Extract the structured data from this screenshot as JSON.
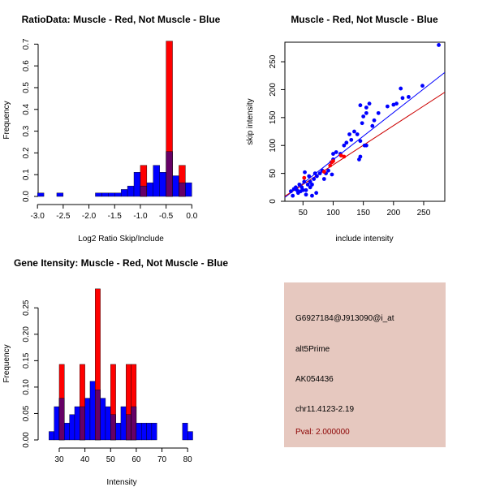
{
  "colors": {
    "muscle": "#ff0000",
    "not_muscle": "#0000ff",
    "overlap": "#660066",
    "panel_bg": "#e6c8bf",
    "pval": "#8b0000"
  },
  "chart_data": [
    {
      "type": "histogram",
      "title": "RatioData: Muscle - Red, Not Muscle - Blue",
      "xlabel": "Log2 Ratio Skip/Include",
      "ylabel": "Frequency",
      "xlim": [
        -3.05,
        0.2
      ],
      "ylim": [
        0,
        0.72
      ],
      "x_ticks": [
        "-3.0",
        "-2.5",
        "-2.0",
        "-1.5",
        "-1.0",
        "-0.5",
        "0.0"
      ],
      "x_tick_values": [
        -3.0,
        -2.5,
        -2.0,
        -1.5,
        -1.0,
        -0.5,
        0.0
      ],
      "y_ticks": [
        "0.0",
        "0.1",
        "0.2",
        "0.3",
        "0.4",
        "0.5",
        "0.6",
        "0.7"
      ],
      "y_tick_values": [
        0,
        0.1,
        0.2,
        0.3,
        0.4,
        0.5,
        0.6,
        0.7
      ],
      "bins": [
        -3.0,
        -2.875,
        -2.75,
        -2.625,
        -2.5,
        -2.375,
        -2.25,
        -2.125,
        -2.0,
        -1.875,
        -1.75,
        -1.625,
        -1.5,
        -1.375,
        -1.25,
        -1.125,
        -1.0,
        -0.875,
        -0.75,
        -0.625,
        -0.5,
        -0.375,
        -0.25,
        -0.125,
        0.0,
        0.125
      ],
      "series": [
        {
          "name": "Muscle",
          "color": "#ff0000",
          "values": [
            0,
            0,
            0,
            0,
            0,
            0,
            0,
            0,
            0,
            0,
            0,
            0,
            0,
            0,
            0,
            0,
            0.143,
            0,
            0,
            0,
            0.714,
            0,
            0.143,
            0,
            0
          ]
        },
        {
          "name": "Not Muscle",
          "color": "#0000ff",
          "values": [
            0.016,
            0,
            0,
            0.016,
            0,
            0,
            0,
            0,
            0,
            0.016,
            0.016,
            0.016,
            0.016,
            0.032,
            0.048,
            0.111,
            0.048,
            0.063,
            0.143,
            0.111,
            0.206,
            0.095,
            0.063,
            0.063,
            0
          ]
        }
      ]
    },
    {
      "type": "scatter",
      "title": "Muscle - Red, Not Muscle - Blue",
      "xlabel": "include intensity",
      "ylabel": "skip intensity",
      "xlim": [
        20,
        285
      ],
      "ylim": [
        0,
        285
      ],
      "x_ticks": [
        "50",
        "100",
        "150",
        "200",
        "250"
      ],
      "x_tick_values": [
        50,
        100,
        150,
        200,
        250
      ],
      "y_ticks": [
        "0",
        "50",
        "100",
        "150",
        "200",
        "250"
      ],
      "y_tick_values": [
        0,
        50,
        100,
        150,
        200,
        250
      ],
      "series": [
        {
          "name": "Not Muscle",
          "color": "#0000ff",
          "points": [
            [
              275,
              280
            ],
            [
              248,
              207
            ],
            [
              225,
              187
            ],
            [
              215,
              185
            ],
            [
              212,
              202
            ],
            [
              205,
              175
            ],
            [
              200,
              173
            ],
            [
              190,
              170
            ],
            [
              175,
              158
            ],
            [
              168,
              145
            ],
            [
              165,
              135
            ],
            [
              160,
              175
            ],
            [
              155,
              158
            ],
            [
              155,
              168
            ],
            [
              150,
              152
            ],
            [
              148,
              140
            ],
            [
              145,
              108
            ],
            [
              145,
              172
            ],
            [
              145,
              80
            ],
            [
              143,
              75
            ],
            [
              140,
              120
            ],
            [
              135,
              125
            ],
            [
              130,
              110
            ],
            [
              127,
              120
            ],
            [
              122,
              105
            ],
            [
              118,
              100
            ],
            [
              112,
              85
            ],
            [
              105,
              88
            ],
            [
              100,
              85
            ],
            [
              100,
              75
            ],
            [
              97,
              70
            ],
            [
              92,
              55
            ],
            [
              88,
              50
            ],
            [
              85,
              40
            ],
            [
              82,
              55
            ],
            [
              78,
              50
            ],
            [
              73,
              45
            ],
            [
              70,
              50
            ],
            [
              68,
              40
            ],
            [
              65,
              30
            ],
            [
              62,
              35
            ],
            [
              62,
              25
            ],
            [
              60,
              45
            ],
            [
              58,
              30
            ],
            [
              55,
              20
            ],
            [
              55,
              12
            ],
            [
              53,
              52
            ],
            [
              52,
              35
            ],
            [
              50,
              20
            ],
            [
              48,
              25
            ],
            [
              46,
              18
            ],
            [
              44,
              30
            ],
            [
              42,
              15
            ],
            [
              40,
              20
            ],
            [
              38,
              25
            ],
            [
              35,
              22
            ],
            [
              33,
              10
            ],
            [
              30,
              18
            ],
            [
              65,
              10
            ],
            [
              72,
              15
            ],
            [
              155,
              100
            ],
            [
              152,
              100
            ],
            [
              98,
              48
            ]
          ]
        },
        {
          "name": "Muscle",
          "color": "#ff0000",
          "points": [
            [
              52,
              42
            ],
            [
              85,
              53
            ],
            [
              95,
              64
            ],
            [
              98,
              70
            ],
            [
              100,
              72
            ],
            [
              113,
              82
            ],
            [
              118,
              80
            ]
          ]
        }
      ],
      "fit_lines": [
        {
          "name": "Not Muscle fit",
          "color": "#0000ff",
          "intercept": -10,
          "slope": 0.845
        },
        {
          "name": "Muscle fit",
          "color": "#cc0000",
          "intercept": -5,
          "slope": 0.703
        }
      ]
    },
    {
      "type": "histogram",
      "title": "Gene Itensity: Muscle - Red, Not Muscle - Blue",
      "xlabel": "Intensity",
      "ylabel": "Frequency",
      "xlim": [
        24,
        85
      ],
      "ylim": [
        0,
        0.295
      ],
      "x_ticks": [
        "30",
        "40",
        "50",
        "60",
        "70",
        "80"
      ],
      "x_tick_values": [
        30,
        40,
        50,
        60,
        70,
        80
      ],
      "y_ticks": [
        "0.00",
        "0.05",
        "0.10",
        "0.15",
        "0.20",
        "0.25"
      ],
      "y_tick_values": [
        0,
        0.05,
        0.1,
        0.15,
        0.2,
        0.25
      ],
      "bins": [
        26,
        28,
        30,
        32,
        34,
        36,
        38,
        40,
        42,
        44,
        46,
        48,
        50,
        52,
        54,
        56,
        58,
        60,
        62,
        64,
        66,
        68,
        70,
        72,
        74,
        76,
        78,
        80,
        82,
        84
      ],
      "series": [
        {
          "name": "Muscle",
          "color": "#ff0000",
          "values": [
            0,
            0,
            0.143,
            0,
            0,
            0,
            0.143,
            0,
            0,
            0.286,
            0,
            0,
            0.143,
            0,
            0,
            0.143,
            0.143,
            0,
            0,
            0,
            0,
            0,
            0,
            0,
            0,
            0,
            0,
            0,
            0
          ]
        },
        {
          "name": "Not Muscle",
          "color": "#0000ff",
          "values": [
            0.016,
            0.063,
            0.079,
            0.032,
            0.048,
            0.063,
            0.063,
            0.079,
            0.111,
            0.095,
            0.079,
            0.063,
            0.048,
            0.032,
            0.063,
            0.048,
            0.063,
            0.032,
            0.032,
            0.032,
            0.032,
            0,
            0,
            0,
            0,
            0,
            0.032,
            0.016,
            0
          ]
        }
      ]
    }
  ],
  "info": {
    "probe_id": "G6927184@J913090@i_at",
    "event_type": "alt5Prime",
    "accession": "AK054436",
    "location": "chr11.4123-2.19",
    "pval": "Pval: 2.000000"
  }
}
